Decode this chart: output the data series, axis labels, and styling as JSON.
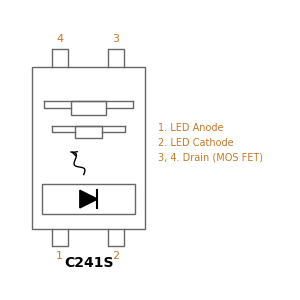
{
  "title": "C241S",
  "title_fontsize": 10,
  "title_fontweight": "bold",
  "line_color": "#666666",
  "text_color": "#c8782a",
  "bg_color": "#ffffff",
  "annotations": [
    "1. LED Anode",
    "2. LED Cathode",
    "3, 4. Drain (MOS FET)"
  ],
  "pin_label_color": "#c8782a",
  "pin_label_fs": 8,
  "ann_fontsize": 7
}
